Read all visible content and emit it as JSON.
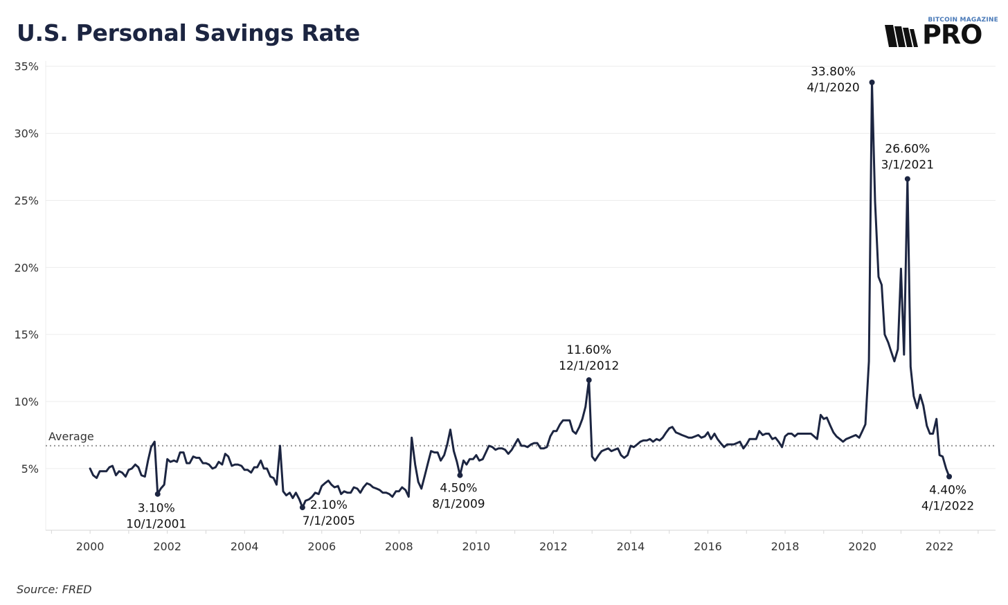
{
  "title": "U.S. Personal Savings Rate",
  "source": "Source: FRED",
  "logo": {
    "top_text": "BITCOIN MAGAZINE",
    "main_text": "PRO",
    "icon": "bitcoin-magazine-pro-icon"
  },
  "colors": {
    "line": "#1c2541",
    "grid": "#ececec",
    "average": "#9a9a9a",
    "text": "#1c2541"
  },
  "chart_data": {
    "type": "line",
    "title": "U.S. Personal Savings Rate",
    "xlabel": "",
    "ylabel": "",
    "grid": true,
    "xlim": [
      1998.85,
      2023.45
    ],
    "ylim": [
      0.4,
      35.4
    ],
    "yticks": [
      5,
      10,
      15,
      20,
      25,
      30,
      35
    ],
    "ytick_labels": [
      "5%",
      "10%",
      "15%",
      "20%",
      "25%",
      "30%",
      "35%"
    ],
    "xticks": [
      2000,
      2002,
      2004,
      2006,
      2008,
      2010,
      2012,
      2014,
      2016,
      2018,
      2020,
      2022
    ],
    "xtick_labels": [
      "2000",
      "2002",
      "2004",
      "2006",
      "2008",
      "2010",
      "2012",
      "2014",
      "2016",
      "2018",
      "2020",
      "2022"
    ],
    "average": {
      "label": "Average",
      "value": 6.7
    },
    "series": [
      {
        "points": [
          [
            2000.0,
            5.0
          ],
          [
            2000.08,
            4.5
          ],
          [
            2000.17,
            4.3
          ],
          [
            2000.25,
            4.8
          ],
          [
            2000.33,
            4.8
          ],
          [
            2000.42,
            4.8
          ],
          [
            2000.5,
            5.1
          ],
          [
            2000.58,
            5.2
          ],
          [
            2000.67,
            4.5
          ],
          [
            2000.75,
            4.8
          ],
          [
            2000.83,
            4.7
          ],
          [
            2000.92,
            4.4
          ],
          [
            2001.0,
            4.9
          ],
          [
            2001.08,
            5.0
          ],
          [
            2001.17,
            5.3
          ],
          [
            2001.25,
            5.1
          ],
          [
            2001.33,
            4.5
          ],
          [
            2001.42,
            4.4
          ],
          [
            2001.5,
            5.6
          ],
          [
            2001.58,
            6.6
          ],
          [
            2001.67,
            7.0
          ],
          [
            2001.75,
            3.1
          ],
          [
            2001.83,
            3.5
          ],
          [
            2001.92,
            3.8
          ],
          [
            2002.0,
            5.7
          ],
          [
            2002.08,
            5.5
          ],
          [
            2002.17,
            5.6
          ],
          [
            2002.25,
            5.5
          ],
          [
            2002.33,
            6.2
          ],
          [
            2002.42,
            6.2
          ],
          [
            2002.5,
            5.4
          ],
          [
            2002.58,
            5.4
          ],
          [
            2002.67,
            5.9
          ],
          [
            2002.75,
            5.8
          ],
          [
            2002.83,
            5.8
          ],
          [
            2002.92,
            5.4
          ],
          [
            2003.0,
            5.4
          ],
          [
            2003.08,
            5.3
          ],
          [
            2003.17,
            5.0
          ],
          [
            2003.25,
            5.1
          ],
          [
            2003.33,
            5.5
          ],
          [
            2003.42,
            5.3
          ],
          [
            2003.5,
            6.1
          ],
          [
            2003.58,
            5.9
          ],
          [
            2003.67,
            5.2
          ],
          [
            2003.75,
            5.3
          ],
          [
            2003.83,
            5.3
          ],
          [
            2003.92,
            5.2
          ],
          [
            2004.0,
            4.9
          ],
          [
            2004.08,
            4.9
          ],
          [
            2004.17,
            4.7
          ],
          [
            2004.25,
            5.1
          ],
          [
            2004.33,
            5.1
          ],
          [
            2004.42,
            5.6
          ],
          [
            2004.5,
            5.0
          ],
          [
            2004.58,
            5.0
          ],
          [
            2004.67,
            4.4
          ],
          [
            2004.75,
            4.3
          ],
          [
            2004.83,
            3.8
          ],
          [
            2004.92,
            6.7
          ],
          [
            2005.0,
            3.3
          ],
          [
            2005.08,
            3.0
          ],
          [
            2005.17,
            3.2
          ],
          [
            2005.25,
            2.8
          ],
          [
            2005.33,
            3.2
          ],
          [
            2005.42,
            2.7
          ],
          [
            2005.5,
            2.1
          ],
          [
            2005.58,
            2.6
          ],
          [
            2005.67,
            2.7
          ],
          [
            2005.75,
            2.9
          ],
          [
            2005.83,
            3.2
          ],
          [
            2005.92,
            3.1
          ],
          [
            2006.0,
            3.7
          ],
          [
            2006.08,
            3.9
          ],
          [
            2006.17,
            4.1
          ],
          [
            2006.25,
            3.8
          ],
          [
            2006.33,
            3.6
          ],
          [
            2006.42,
            3.7
          ],
          [
            2006.5,
            3.1
          ],
          [
            2006.58,
            3.3
          ],
          [
            2006.67,
            3.2
          ],
          [
            2006.75,
            3.2
          ],
          [
            2006.83,
            3.6
          ],
          [
            2006.92,
            3.5
          ],
          [
            2007.0,
            3.2
          ],
          [
            2007.08,
            3.6
          ],
          [
            2007.17,
            3.9
          ],
          [
            2007.25,
            3.8
          ],
          [
            2007.33,
            3.6
          ],
          [
            2007.42,
            3.5
          ],
          [
            2007.5,
            3.4
          ],
          [
            2007.58,
            3.2
          ],
          [
            2007.67,
            3.2
          ],
          [
            2007.75,
            3.1
          ],
          [
            2007.83,
            2.9
          ],
          [
            2007.92,
            3.3
          ],
          [
            2008.0,
            3.3
          ],
          [
            2008.08,
            3.6
          ],
          [
            2008.17,
            3.4
          ],
          [
            2008.25,
            2.9
          ],
          [
            2008.33,
            7.3
          ],
          [
            2008.42,
            5.3
          ],
          [
            2008.5,
            4.0
          ],
          [
            2008.58,
            3.5
          ],
          [
            2008.67,
            4.5
          ],
          [
            2008.75,
            5.4
          ],
          [
            2008.83,
            6.3
          ],
          [
            2008.92,
            6.2
          ],
          [
            2009.0,
            6.2
          ],
          [
            2009.08,
            5.6
          ],
          [
            2009.17,
            6.0
          ],
          [
            2009.25,
            6.8
          ],
          [
            2009.33,
            7.9
          ],
          [
            2009.42,
            6.3
          ],
          [
            2009.5,
            5.5
          ],
          [
            2009.58,
            4.5
          ],
          [
            2009.67,
            5.6
          ],
          [
            2009.75,
            5.3
          ],
          [
            2009.83,
            5.7
          ],
          [
            2009.92,
            5.7
          ],
          [
            2010.0,
            6.0
          ],
          [
            2010.08,
            5.6
          ],
          [
            2010.17,
            5.7
          ],
          [
            2010.25,
            6.2
          ],
          [
            2010.33,
            6.7
          ],
          [
            2010.42,
            6.6
          ],
          [
            2010.5,
            6.4
          ],
          [
            2010.58,
            6.5
          ],
          [
            2010.67,
            6.5
          ],
          [
            2010.75,
            6.4
          ],
          [
            2010.83,
            6.1
          ],
          [
            2010.92,
            6.4
          ],
          [
            2011.0,
            6.8
          ],
          [
            2011.08,
            7.2
          ],
          [
            2011.17,
            6.7
          ],
          [
            2011.25,
            6.7
          ],
          [
            2011.33,
            6.6
          ],
          [
            2011.42,
            6.8
          ],
          [
            2011.5,
            6.9
          ],
          [
            2011.58,
            6.9
          ],
          [
            2011.67,
            6.5
          ],
          [
            2011.75,
            6.5
          ],
          [
            2011.83,
            6.6
          ],
          [
            2011.92,
            7.4
          ],
          [
            2012.0,
            7.8
          ],
          [
            2012.08,
            7.8
          ],
          [
            2012.17,
            8.3
          ],
          [
            2012.25,
            8.6
          ],
          [
            2012.33,
            8.6
          ],
          [
            2012.42,
            8.6
          ],
          [
            2012.5,
            7.8
          ],
          [
            2012.58,
            7.6
          ],
          [
            2012.67,
            8.1
          ],
          [
            2012.75,
            8.7
          ],
          [
            2012.83,
            9.6
          ],
          [
            2012.92,
            11.6
          ],
          [
            2013.0,
            5.9
          ],
          [
            2013.08,
            5.6
          ],
          [
            2013.17,
            6.0
          ],
          [
            2013.25,
            6.3
          ],
          [
            2013.33,
            6.4
          ],
          [
            2013.42,
            6.5
          ],
          [
            2013.5,
            6.3
          ],
          [
            2013.58,
            6.4
          ],
          [
            2013.67,
            6.5
          ],
          [
            2013.75,
            6.0
          ],
          [
            2013.83,
            5.8
          ],
          [
            2013.92,
            6.0
          ],
          [
            2014.0,
            6.7
          ],
          [
            2014.08,
            6.6
          ],
          [
            2014.17,
            6.8
          ],
          [
            2014.25,
            7.0
          ],
          [
            2014.33,
            7.1
          ],
          [
            2014.42,
            7.1
          ],
          [
            2014.5,
            7.2
          ],
          [
            2014.58,
            7.0
          ],
          [
            2014.67,
            7.2
          ],
          [
            2014.75,
            7.1
          ],
          [
            2014.83,
            7.3
          ],
          [
            2014.92,
            7.7
          ],
          [
            2015.0,
            8.0
          ],
          [
            2015.08,
            8.1
          ],
          [
            2015.17,
            7.7
          ],
          [
            2015.25,
            7.6
          ],
          [
            2015.33,
            7.5
          ],
          [
            2015.42,
            7.4
          ],
          [
            2015.5,
            7.3
          ],
          [
            2015.58,
            7.3
          ],
          [
            2015.67,
            7.4
          ],
          [
            2015.75,
            7.5
          ],
          [
            2015.83,
            7.3
          ],
          [
            2015.92,
            7.4
          ],
          [
            2016.0,
            7.7
          ],
          [
            2016.08,
            7.2
          ],
          [
            2016.17,
            7.6
          ],
          [
            2016.25,
            7.2
          ],
          [
            2016.33,
            6.9
          ],
          [
            2016.42,
            6.6
          ],
          [
            2016.5,
            6.8
          ],
          [
            2016.58,
            6.8
          ],
          [
            2016.67,
            6.8
          ],
          [
            2016.75,
            6.9
          ],
          [
            2016.83,
            7.0
          ],
          [
            2016.92,
            6.5
          ],
          [
            2017.0,
            6.8
          ],
          [
            2017.08,
            7.2
          ],
          [
            2017.17,
            7.2
          ],
          [
            2017.25,
            7.2
          ],
          [
            2017.33,
            7.8
          ],
          [
            2017.42,
            7.5
          ],
          [
            2017.5,
            7.6
          ],
          [
            2017.58,
            7.6
          ],
          [
            2017.67,
            7.2
          ],
          [
            2017.75,
            7.3
          ],
          [
            2017.83,
            7.0
          ],
          [
            2017.92,
            6.6
          ],
          [
            2018.0,
            7.4
          ],
          [
            2018.08,
            7.6
          ],
          [
            2018.17,
            7.6
          ],
          [
            2018.25,
            7.4
          ],
          [
            2018.33,
            7.6
          ],
          [
            2018.42,
            7.6
          ],
          [
            2018.5,
            7.6
          ],
          [
            2018.58,
            7.6
          ],
          [
            2018.67,
            7.6
          ],
          [
            2018.75,
            7.4
          ],
          [
            2018.83,
            7.2
          ],
          [
            2018.92,
            9.0
          ],
          [
            2019.0,
            8.7
          ],
          [
            2019.08,
            8.8
          ],
          [
            2019.17,
            8.2
          ],
          [
            2019.25,
            7.7
          ],
          [
            2019.33,
            7.4
          ],
          [
            2019.42,
            7.2
          ],
          [
            2019.5,
            7.0
          ],
          [
            2019.58,
            7.2
          ],
          [
            2019.67,
            7.3
          ],
          [
            2019.75,
            7.4
          ],
          [
            2019.83,
            7.5
          ],
          [
            2019.92,
            7.3
          ],
          [
            2020.0,
            7.8
          ],
          [
            2020.08,
            8.3
          ],
          [
            2020.17,
            13.0
          ],
          [
            2020.25,
            33.8
          ],
          [
            2020.33,
            24.9
          ],
          [
            2020.42,
            19.3
          ],
          [
            2020.5,
            18.7
          ],
          [
            2020.58,
            15.0
          ],
          [
            2020.67,
            14.4
          ],
          [
            2020.75,
            13.7
          ],
          [
            2020.83,
            13.0
          ],
          [
            2020.92,
            13.9
          ],
          [
            2021.0,
            19.9
          ],
          [
            2021.08,
            13.5
          ],
          [
            2021.17,
            26.6
          ],
          [
            2021.25,
            12.6
          ],
          [
            2021.33,
            10.4
          ],
          [
            2021.42,
            9.5
          ],
          [
            2021.5,
            10.5
          ],
          [
            2021.58,
            9.7
          ],
          [
            2021.67,
            8.2
          ],
          [
            2021.75,
            7.6
          ],
          [
            2021.83,
            7.6
          ],
          [
            2021.92,
            8.7
          ],
          [
            2022.0,
            6.0
          ],
          [
            2022.08,
            5.9
          ],
          [
            2022.17,
            5.0
          ],
          [
            2022.25,
            4.4
          ]
        ]
      }
    ],
    "annotations": [
      {
        "value": "3.10%",
        "date": "10/1/2001",
        "x": 2001.75,
        "y": 3.1,
        "position": "below"
      },
      {
        "value": "2.10%",
        "date": "7/1/2005",
        "x": 2005.5,
        "y": 2.1,
        "position": "below"
      },
      {
        "value": "4.50%",
        "date": "8/1/2009",
        "x": 2009.58,
        "y": 4.5,
        "position": "below"
      },
      {
        "value": "11.60%",
        "date": "12/1/2012",
        "x": 2012.92,
        "y": 11.6,
        "position": "above"
      },
      {
        "value": "33.80%",
        "date": "4/1/2020",
        "x": 2020.25,
        "y": 33.8,
        "position": "left"
      },
      {
        "value": "26.60%",
        "date": "3/1/2021",
        "x": 2021.17,
        "y": 26.6,
        "position": "above"
      },
      {
        "value": "4.40%",
        "date": "4/1/2022",
        "x": 2022.25,
        "y": 4.4,
        "position": "below"
      }
    ]
  }
}
